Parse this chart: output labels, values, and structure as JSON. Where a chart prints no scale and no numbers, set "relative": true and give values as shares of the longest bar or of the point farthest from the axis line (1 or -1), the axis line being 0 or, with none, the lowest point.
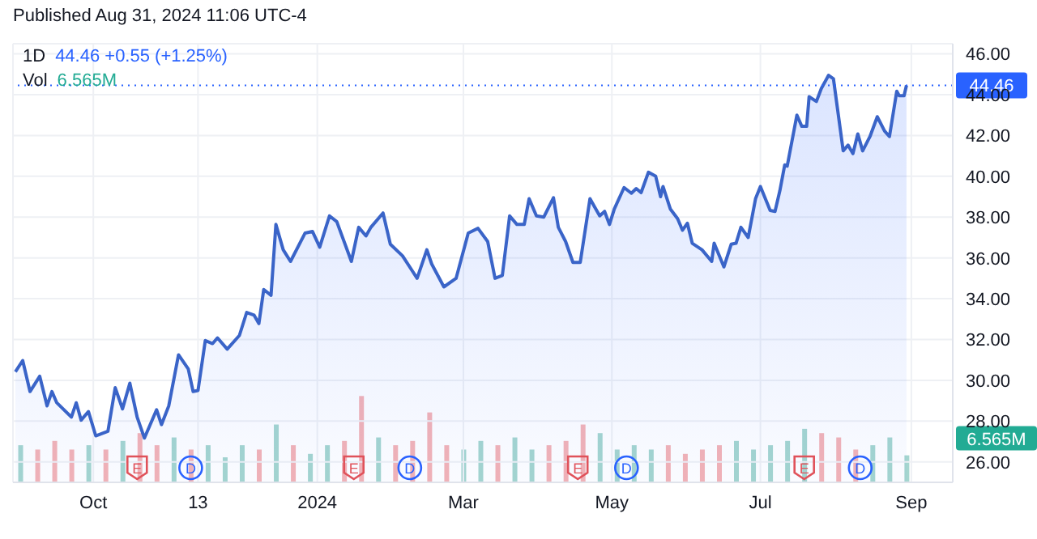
{
  "chart_data": [
    {
      "type": "area",
      "subtitle": "Published Aug 31, 2024 11:06 UTC-4",
      "title": "1D",
      "annotations": [
        "44.46 +0.55 (+1.25%)",
        "Vol",
        "6.565M",
        {
          "text": "E",
          "x": "2023-10-19"
        },
        {
          "text": "D",
          "x": "2023-11-10"
        },
        {
          "text": "E",
          "x": "2024-01-16"
        },
        {
          "text": "D",
          "x": "2024-02-08"
        },
        {
          "text": "E",
          "x": "2024-04-17"
        },
        {
          "text": "D",
          "x": "2024-05-07"
        },
        {
          "text": "E",
          "x": "2024-07-19"
        },
        {
          "text": "D",
          "x": "2024-08-11"
        }
      ],
      "xlim": [
        "2023-08-29",
        "2024-09-18"
      ],
      "xticks": [
        {
          "value": "2023-10-01",
          "label": "Oct"
        },
        {
          "value": "2023-11-13",
          "label": "13"
        },
        {
          "value": "2024-01-01",
          "label": "2024"
        },
        {
          "value": "2024-03-01",
          "label": "Mar"
        },
        {
          "value": "2024-05-01",
          "label": "May"
        },
        {
          "value": "2024-07-01",
          "label": "Jul"
        },
        {
          "value": "2024-09-01",
          "label": "Sep"
        }
      ],
      "ylim": [
        25,
        46.5
      ],
      "yticks": [
        {
          "value": 26,
          "label": "26.00"
        },
        {
          "value": 28,
          "label": "28.00"
        },
        {
          "value": 30,
          "label": "30.00"
        },
        {
          "value": 32,
          "label": "32.00"
        },
        {
          "value": 34,
          "label": "34.00"
        },
        {
          "value": 36,
          "label": "36.00"
        },
        {
          "value": 38,
          "label": "38.00"
        },
        {
          "value": 40,
          "label": "40.00"
        },
        {
          "value": 42,
          "label": "42.00"
        },
        {
          "value": 44,
          "label": "44.00"
        },
        {
          "value": 46,
          "label": "46.00"
        }
      ],
      "grid": true,
      "ref_lines": [
        {
          "axis": "y",
          "value": 44.46,
          "label": "44.46",
          "color": "#2962ff",
          "line_style": "dotted"
        }
      ],
      "series": [
        {
          "color": "#3a64c8",
          "x": [
            "2023-08-30",
            "2023-09-02",
            "2023-09-05",
            "2023-09-09",
            "2023-09-12",
            "2023-09-14",
            "2023-09-16",
            "2023-09-22",
            "2023-09-24",
            "2023-09-26",
            "2023-09-29",
            "2023-10-02",
            "2023-10-07",
            "2023-10-10",
            "2023-10-13",
            "2023-10-16",
            "2023-10-19",
            "2023-10-22",
            "2023-10-27",
            "2023-10-29",
            "2023-11-01",
            "2023-11-05",
            "2023-11-09",
            "2023-11-11",
            "2023-11-13",
            "2023-11-16",
            "2023-11-19",
            "2023-11-21",
            "2023-11-25",
            "2023-11-30",
            "2023-12-03",
            "2023-12-06",
            "2023-12-08",
            "2023-12-10",
            "2023-12-13",
            "2023-12-15",
            "2023-12-18",
            "2023-12-21",
            "2023-12-27",
            "2023-12-30",
            "2024-01-02",
            "2024-01-06",
            "2024-01-09",
            "2024-01-15",
            "2024-01-18",
            "2024-01-21",
            "2024-01-23",
            "2024-01-28",
            "2024-01-31",
            "2024-02-05",
            "2024-02-11",
            "2024-02-15",
            "2024-02-17",
            "2024-02-22",
            "2024-02-27",
            "2024-03-03",
            "2024-03-07",
            "2024-03-11",
            "2024-03-14",
            "2024-03-17",
            "2024-03-20",
            "2024-03-23",
            "2024-03-26",
            "2024-03-28",
            "2024-03-31",
            "2024-04-03",
            "2024-04-07",
            "2024-04-09",
            "2024-04-12",
            "2024-04-15",
            "2024-04-18",
            "2024-04-22",
            "2024-04-26",
            "2024-04-28",
            "2024-04-30",
            "2024-05-02",
            "2024-05-06",
            "2024-05-09",
            "2024-05-11",
            "2024-05-13",
            "2024-05-16",
            "2024-05-19",
            "2024-05-21",
            "2024-05-22",
            "2024-05-25",
            "2024-05-28",
            "2024-05-30",
            "2024-06-01",
            "2024-06-03",
            "2024-06-07",
            "2024-06-11",
            "2024-06-12",
            "2024-06-16",
            "2024-06-19",
            "2024-06-21",
            "2024-06-23",
            "2024-06-26",
            "2024-06-29",
            "2024-07-01",
            "2024-07-05",
            "2024-07-07",
            "2024-07-09",
            "2024-07-11",
            "2024-07-12",
            "2024-07-16",
            "2024-07-18",
            "2024-07-20",
            "2024-07-21",
            "2024-07-24",
            "2024-07-26",
            "2024-07-29",
            "2024-07-31",
            "2024-08-04",
            "2024-08-06",
            "2024-08-08",
            "2024-08-10",
            "2024-08-12",
            "2024-08-15",
            "2024-08-18",
            "2024-08-21",
            "2024-08-23",
            "2024-08-26",
            "2024-08-27",
            "2024-08-29",
            "2024-08-30"
          ],
          "values": [
            30.42,
            30.97,
            29.45,
            30.2,
            28.75,
            29.45,
            28.9,
            28.2,
            28.9,
            28.05,
            28.47,
            27.28,
            27.5,
            29.64,
            28.6,
            29.86,
            28.2,
            27.17,
            28.56,
            27.83,
            28.75,
            31.25,
            30.56,
            29.45,
            29.5,
            31.95,
            31.8,
            32.08,
            31.53,
            32.2,
            33.33,
            33.2,
            32.78,
            34.45,
            34.17,
            37.64,
            36.4,
            35.83,
            37.22,
            37.3,
            36.53,
            38.06,
            37.78,
            35.83,
            37.5,
            37.08,
            37.5,
            38.2,
            36.67,
            36.1,
            35.0,
            36.4,
            35.7,
            34.58,
            35.0,
            37.22,
            37.45,
            36.8,
            35.0,
            35.14,
            38.06,
            37.64,
            37.64,
            38.9,
            38.06,
            38.0,
            38.95,
            37.5,
            36.8,
            35.78,
            35.78,
            38.9,
            38.06,
            38.28,
            37.64,
            38.4,
            39.45,
            39.17,
            39.4,
            39.2,
            40.2,
            40.0,
            39.0,
            39.5,
            38.4,
            37.92,
            37.36,
            37.7,
            36.72,
            36.4,
            35.83,
            36.72,
            35.56,
            36.67,
            36.72,
            37.5,
            37.0,
            38.9,
            39.5,
            38.33,
            38.28,
            39.3,
            40.56,
            40.5,
            43.0,
            42.45,
            42.45,
            43.9,
            43.67,
            44.3,
            44.95,
            44.78,
            41.25,
            41.53,
            41.11,
            42.08,
            41.25,
            41.95,
            42.92,
            42.22,
            41.95,
            44.17,
            43.95,
            43.95,
            44.46
          ]
        }
      ]
    },
    {
      "type": "bar",
      "relative": true,
      "annotations": [
        "6.565M"
      ],
      "xlim": [
        "2023-08-29",
        "2024-09-18"
      ],
      "x": [
        "2023-09-01",
        "2023-09-08",
        "2023-09-15",
        "2023-09-22",
        "2023-09-29",
        "2023-10-06",
        "2023-10-13",
        "2023-10-20",
        "2023-10-27",
        "2023-11-03",
        "2023-11-10",
        "2023-11-17",
        "2023-11-24",
        "2023-12-01",
        "2023-12-08",
        "2023-12-15",
        "2023-12-22",
        "2023-12-29",
        "2024-01-05",
        "2024-01-12",
        "2024-01-19",
        "2024-01-26",
        "2024-02-02",
        "2024-02-09",
        "2024-02-16",
        "2024-02-23",
        "2024-03-01",
        "2024-03-08",
        "2024-03-15",
        "2024-03-22",
        "2024-03-29",
        "2024-04-05",
        "2024-04-12",
        "2024-04-19",
        "2024-04-26",
        "2024-05-03",
        "2024-05-10",
        "2024-05-17",
        "2024-05-24",
        "2024-05-31",
        "2024-06-07",
        "2024-06-14",
        "2024-06-21",
        "2024-06-28",
        "2024-07-05",
        "2024-07-12",
        "2024-07-19",
        "2024-07-26",
        "2024-08-02",
        "2024-08-09",
        "2024-08-16",
        "2024-08-23",
        "2024-08-30"
      ],
      "values": [
        0.43,
        0.38,
        0.48,
        0.38,
        0.43,
        0.38,
        0.48,
        0.57,
        0.43,
        0.52,
        0.38,
        0.43,
        0.29,
        0.43,
        0.38,
        0.67,
        0.43,
        0.33,
        0.43,
        0.48,
        1,
        0.52,
        0.43,
        0.48,
        0.81,
        0.43,
        0.38,
        0.48,
        0.43,
        0.52,
        0.38,
        0.43,
        0.48,
        0.67,
        0.57,
        0.38,
        0.43,
        0.38,
        0.43,
        0.33,
        0.38,
        0.43,
        0.48,
        0.38,
        0.43,
        0.48,
        0.62,
        0.57,
        0.52,
        0.38,
        0.43,
        0.52,
        0.313
      ],
      "colors": [
        "#a5d6cf",
        "#f4b3b6",
        "#f4b3b6",
        "#f4b3b6",
        "#a5d6cf",
        "#f4b3b6",
        "#a5d6cf",
        "#f4b3b6",
        "#f4b3b6",
        "#a5d6cf",
        "#f4b3b6",
        "#a5d6cf",
        "#a5d6cf",
        "#a5d6cf",
        "#f4b3b6",
        "#a5d6cf",
        "#f4b3b6",
        "#a5d6cf",
        "#a5d6cf",
        "#f4b3b6",
        "#f4b3b6",
        "#a5d6cf",
        "#f4b3b6",
        "#f4b3b6",
        "#f4b3b6",
        "#f4b3b6",
        "#a5d6cf",
        "#a5d6cf",
        "#f4b3b6",
        "#a5d6cf",
        "#a5d6cf",
        "#f4b3b6",
        "#f4b3b6",
        "#f4b3b6",
        "#a5d6cf",
        "#a5d6cf",
        "#a5d6cf",
        "#a5d6cf",
        "#f4b3b6",
        "#f4b3b6",
        "#f4b3b6",
        "#f4b3b6",
        "#a5d6cf",
        "#a5d6cf",
        "#a5d6cf",
        "#a5d6cf",
        "#a5d6cf",
        "#f4b3b6",
        "#f4b3b6",
        "#f4b3b6",
        "#a5d6cf",
        "#a5d6cf",
        "#a5d6cf"
      ]
    }
  ]
}
